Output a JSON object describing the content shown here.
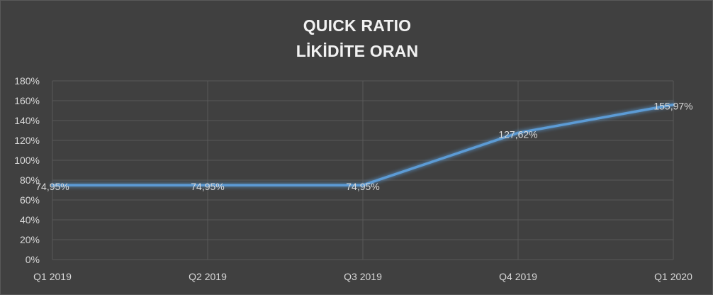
{
  "chart_data": {
    "type": "line",
    "title": "QUICK RATIO",
    "subtitle": "LİKİDİTE ORAN",
    "categories": [
      "Q1 2019",
      "Q2 2019",
      "Q3 2019",
      "Q4 2019",
      "Q1 2020"
    ],
    "series": [
      {
        "values": [
          74.95,
          74.95,
          74.95,
          127.62,
          155.97
        ],
        "data_labels": [
          "74,95%",
          "74,95%",
          "74,95%",
          "127,62%",
          "155,97%"
        ],
        "color": "#5b9bd5"
      }
    ],
    "ylim": [
      0,
      180
    ],
    "yticks": [
      0,
      20,
      40,
      60,
      80,
      100,
      120,
      140,
      160,
      180
    ],
    "ytick_labels": [
      "0%",
      "20%",
      "40%",
      "60%",
      "80%",
      "100%",
      "120%",
      "140%",
      "160%",
      "180%"
    ],
    "xlabel": "",
    "ylabel": "",
    "grid": true,
    "legend": "none"
  },
  "colors": {
    "background": "#404040",
    "gridline": "#595959",
    "text": "#d9d9d9",
    "title": "#f2f2f2",
    "line": "#5b9bd5"
  }
}
